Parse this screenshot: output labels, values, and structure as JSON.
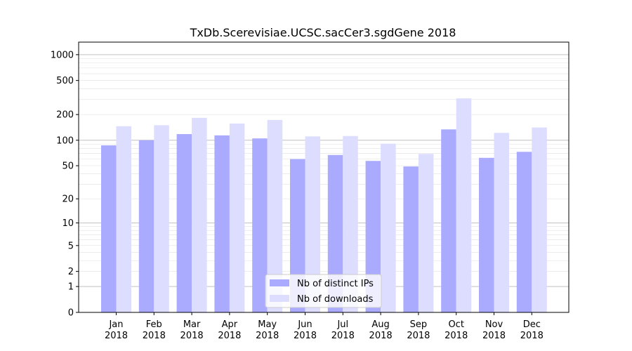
{
  "chart_data": {
    "type": "bar",
    "title": "TxDb.Scerevisiae.UCSC.sacCer3.sgdGene 2018",
    "xlabel": "",
    "ylabel": "",
    "y_scale": "log(1+y)",
    "ylim": [
      0,
      1400
    ],
    "y_ticks": [
      0,
      1,
      2,
      5,
      10,
      20,
      50,
      100,
      200,
      500,
      1000
    ],
    "grid": true,
    "legend_position": "bottom-center",
    "categories": [
      [
        "Jan",
        "2018"
      ],
      [
        "Feb",
        "2018"
      ],
      [
        "Mar",
        "2018"
      ],
      [
        "Apr",
        "2018"
      ],
      [
        "May",
        "2018"
      ],
      [
        "Jun",
        "2018"
      ],
      [
        "Jul",
        "2018"
      ],
      [
        "Aug",
        "2018"
      ],
      [
        "Sep",
        "2018"
      ],
      [
        "Oct",
        "2018"
      ],
      [
        "Nov",
        "2018"
      ],
      [
        "Dec",
        "2018"
      ]
    ],
    "series": [
      {
        "name": "Nb of distinct IPs",
        "color": "#aaaaff",
        "values": [
          87,
          100,
          118,
          114,
          105,
          60,
          67,
          57,
          49,
          134,
          62,
          73
        ]
      },
      {
        "name": "Nb of downloads",
        "color": "#ddddff",
        "values": [
          146,
          150,
          183,
          157,
          173,
          111,
          112,
          91,
          69,
          309,
          122,
          141
        ]
      }
    ]
  }
}
